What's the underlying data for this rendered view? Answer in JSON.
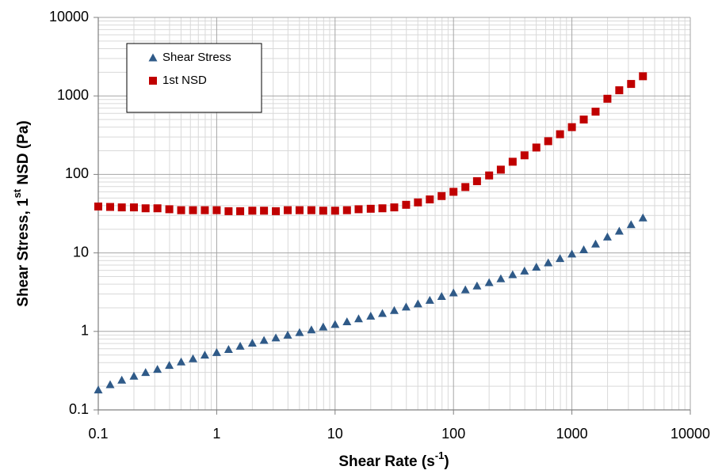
{
  "chart_data": {
    "type": "scatter",
    "x_label": [
      "Shear Rate (s",
      "-1",
      ")"
    ],
    "y_label": [
      "Shear Stress, 1",
      "st",
      " NSD (Pa)"
    ],
    "x": [
      0.1,
      0.126,
      0.158,
      0.2,
      0.251,
      0.316,
      0.398,
      0.501,
      0.631,
      0.794,
      1,
      1.26,
      1.58,
      2,
      2.51,
      3.16,
      3.98,
      5.01,
      6.31,
      7.94,
      10,
      12.6,
      15.8,
      20,
      25.1,
      31.6,
      39.8,
      50.1,
      63.1,
      79.4,
      100,
      126,
      158,
      200,
      251,
      316,
      398,
      501,
      631,
      794,
      1000,
      1259,
      1585,
      1995,
      2512,
      3162,
      3981
    ],
    "series": [
      {
        "name": "Shear Stress",
        "color": "#2f5a88",
        "marker": "triangle",
        "values": [
          0.18,
          0.21,
          0.24,
          0.27,
          0.3,
          0.33,
          0.37,
          0.41,
          0.45,
          0.5,
          0.54,
          0.59,
          0.65,
          0.71,
          0.77,
          0.83,
          0.9,
          0.97,
          1.05,
          1.14,
          1.23,
          1.33,
          1.45,
          1.57,
          1.7,
          1.85,
          2.05,
          2.25,
          2.5,
          2.8,
          3.1,
          3.4,
          3.8,
          4.2,
          4.7,
          5.3,
          5.9,
          6.6,
          7.5,
          8.5,
          9.7,
          11,
          13,
          16,
          19,
          23,
          28
        ]
      },
      {
        "name": "1st NSD",
        "color": "#c00000",
        "marker": "square",
        "values": [
          39,
          38.5,
          38,
          38,
          37,
          37,
          36,
          35,
          35,
          35,
          35,
          34,
          34,
          34.5,
          34.5,
          34,
          35,
          35,
          35,
          34.5,
          34.5,
          35,
          36,
          36.5,
          37,
          38,
          41,
          44,
          48,
          53,
          60,
          69,
          82,
          97,
          115,
          145,
          175,
          220,
          265,
          325,
          400,
          500,
          630,
          920,
          1180,
          1420,
          1780
        ]
      }
    ],
    "xlim": [
      0.1,
      10000
    ],
    "ylim": [
      0.1,
      10000
    ],
    "xticks": [
      0.1,
      1,
      10,
      100,
      1000,
      10000
    ],
    "yticks": [
      0.1,
      1,
      10,
      100,
      1000,
      10000
    ],
    "xscale": "log",
    "yscale": "log",
    "grid": true,
    "legend": "upper-left"
  }
}
